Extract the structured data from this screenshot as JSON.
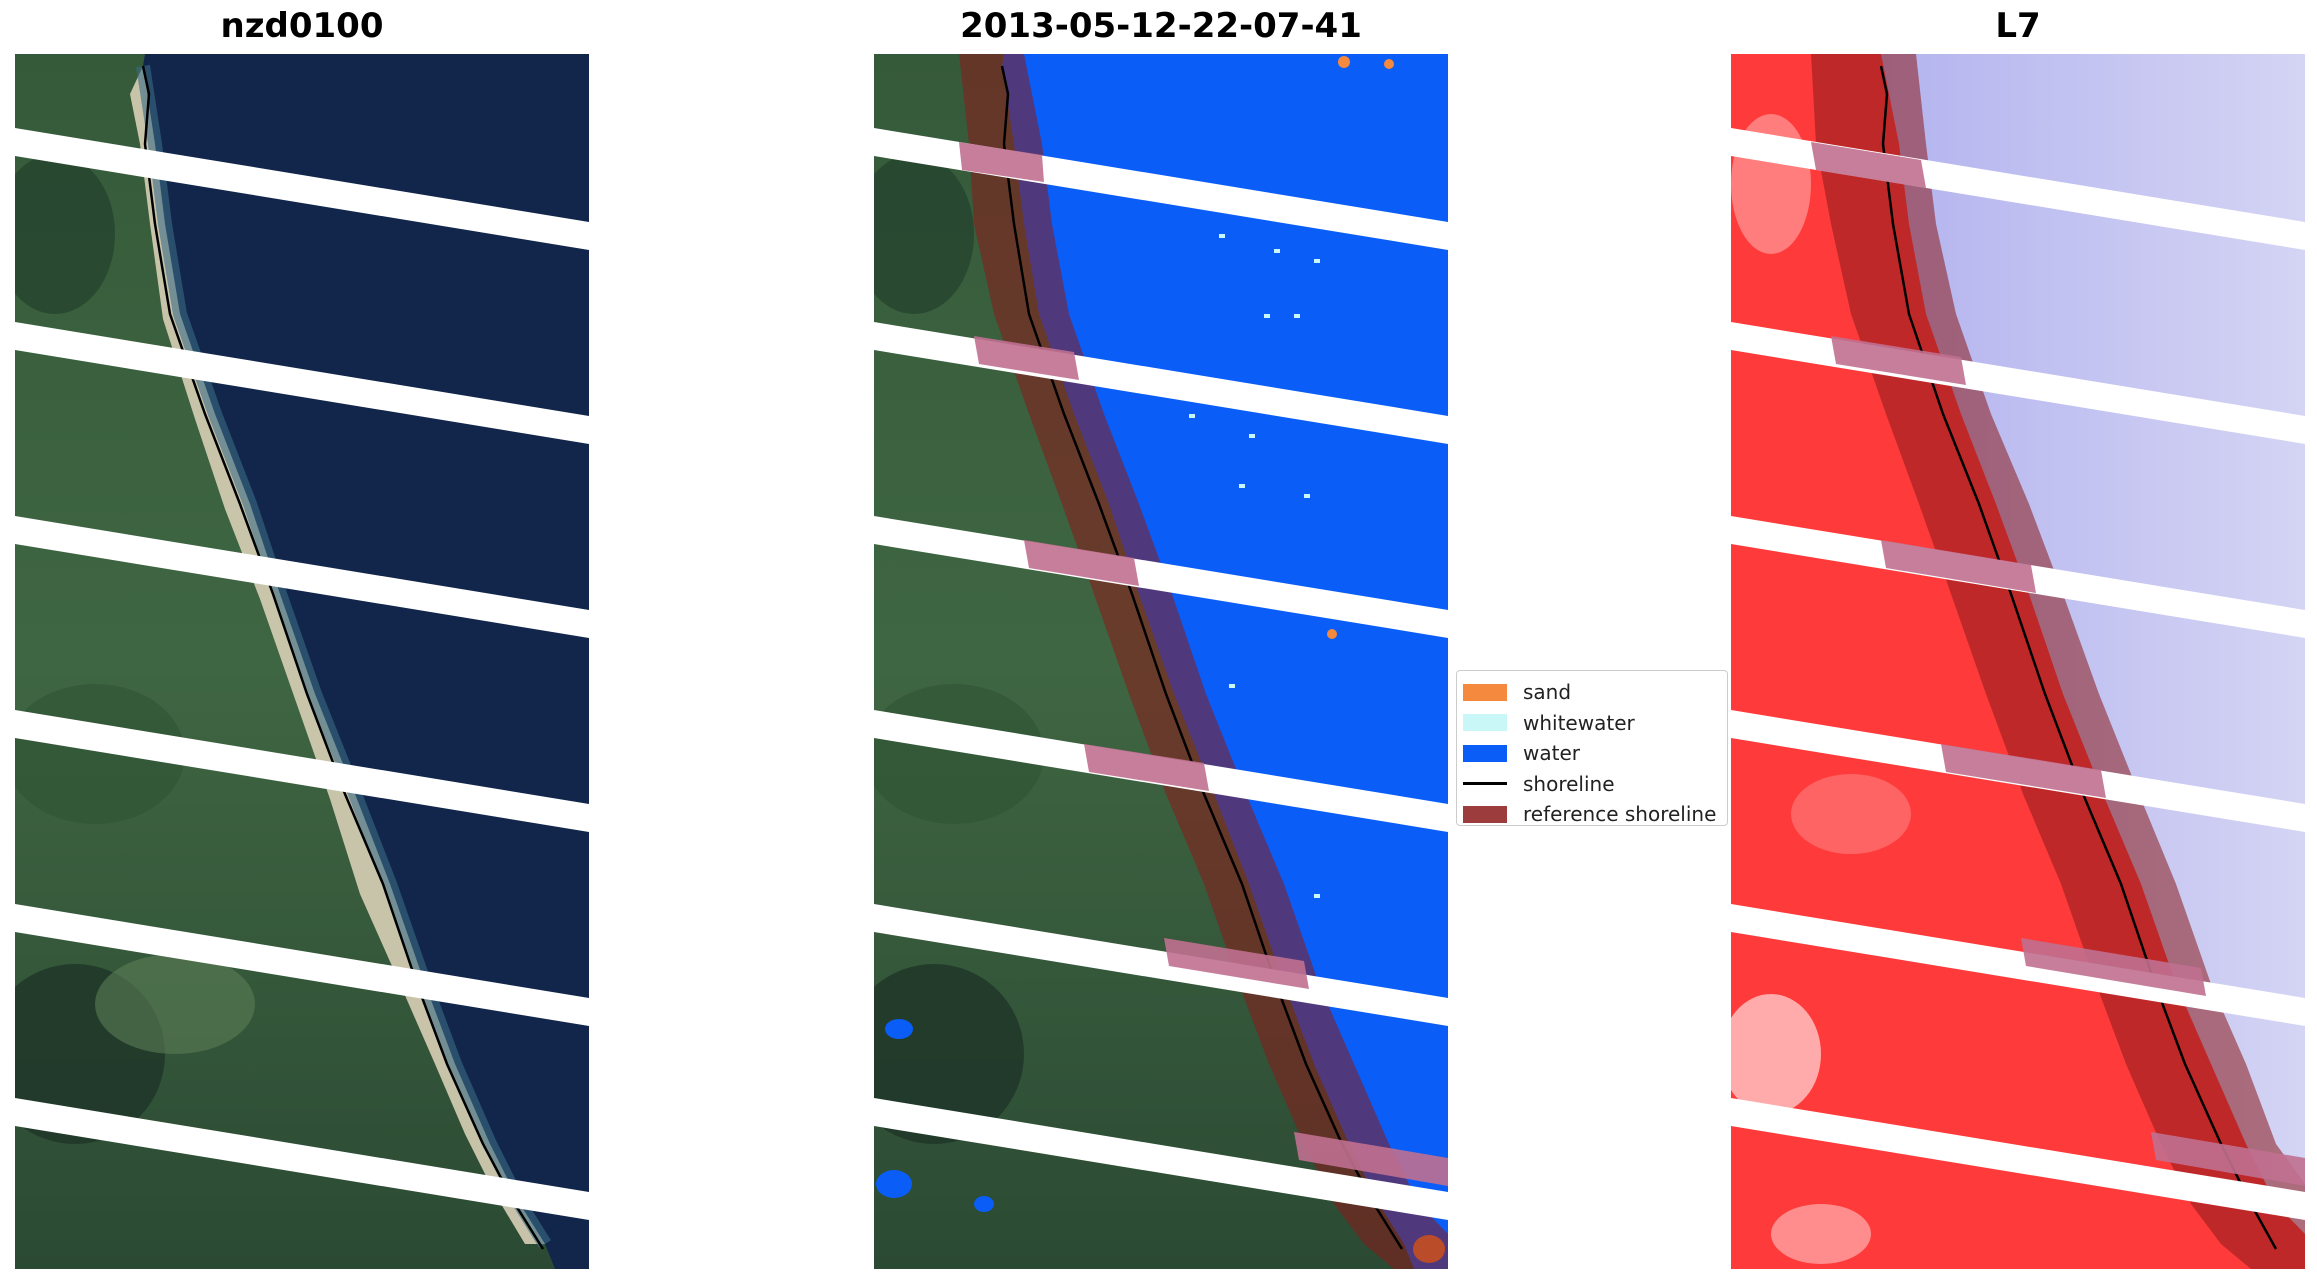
{
  "panels": {
    "left": {
      "title": "nzd0100"
    },
    "middle": {
      "title": "2013-05-12-22-07-41"
    },
    "right": {
      "title": "L7"
    }
  },
  "legend": {
    "items": [
      {
        "label": "sand",
        "color": "#f5893d",
        "kind": "patch"
      },
      {
        "label": "whitewater",
        "color": "#c9f7f8",
        "kind": "patch"
      },
      {
        "label": "water",
        "color": "#0a5ef7",
        "kind": "patch"
      },
      {
        "label": "shoreline",
        "color": "#000000",
        "kind": "line"
      },
      {
        "label": "reference shoreline",
        "color": "#8b1a1a",
        "kind": "patch"
      }
    ]
  },
  "colors": {
    "ocean_rgb": "#11264a",
    "land_green": "#3f6240",
    "beach_sand": "#d8cfb6",
    "water_class": "#0a5ef7",
    "index_red": "#ff3a3a",
    "index_blue": "#c8c8f2",
    "reference_shoreline_overlay": "#8b1a1a",
    "scanline_gap": "#ffffff"
  }
}
